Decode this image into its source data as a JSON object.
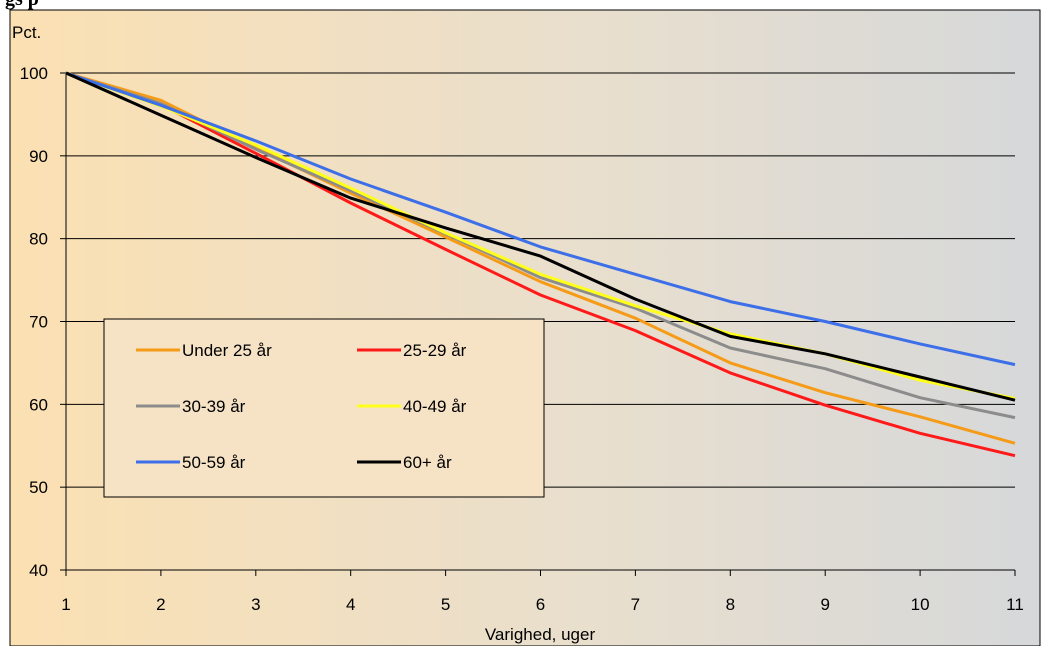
{
  "header": {
    "title_fragment": "gs p"
  },
  "chart_data": {
    "type": "line",
    "title": "",
    "ylabel": "Pct.",
    "xlabel": "Varighed, uger",
    "ylim": [
      40,
      100
    ],
    "yticks": [
      40,
      50,
      60,
      70,
      80,
      90,
      100
    ],
    "x": [
      1,
      2,
      3,
      4,
      5,
      6,
      7,
      8,
      9,
      10,
      11
    ],
    "grid": "horizontal",
    "legend_position": "inside-left",
    "series": [
      {
        "name": "Under 25 år",
        "color": "#f59b17",
        "values": [
          100,
          96.7,
          91.0,
          85.5,
          80.2,
          74.8,
          70.4,
          65.0,
          61.4,
          58.5,
          55.3
        ]
      },
      {
        "name": "25-29 år",
        "color": "#ff1a1a",
        "values": [
          100,
          96.2,
          90.3,
          84.3,
          78.7,
          73.2,
          68.9,
          63.8,
          59.9,
          56.5,
          53.8
        ]
      },
      {
        "name": "30-39 år",
        "color": "#8c8c8c",
        "values": [
          100,
          96.3,
          90.8,
          85.8,
          80.6,
          75.3,
          71.6,
          66.8,
          64.3,
          60.8,
          58.4
        ]
      },
      {
        "name": "40-49 år",
        "color": "#ffff1a",
        "values": [
          100,
          96.0,
          91.3,
          86.1,
          80.7,
          75.7,
          71.9,
          68.5,
          66.1,
          62.9,
          60.7
        ]
      },
      {
        "name": "50-59 år",
        "color": "#3d6fe8",
        "values": [
          100,
          96.1,
          91.8,
          87.2,
          83.2,
          79.0,
          75.7,
          72.4,
          70.0,
          67.3,
          64.8
        ]
      },
      {
        "name": "60+ år",
        "color": "#000000",
        "values": [
          100,
          94.9,
          89.8,
          84.9,
          81.3,
          77.9,
          72.7,
          68.2,
          66.1,
          63.3,
          60.5
        ]
      }
    ]
  }
}
